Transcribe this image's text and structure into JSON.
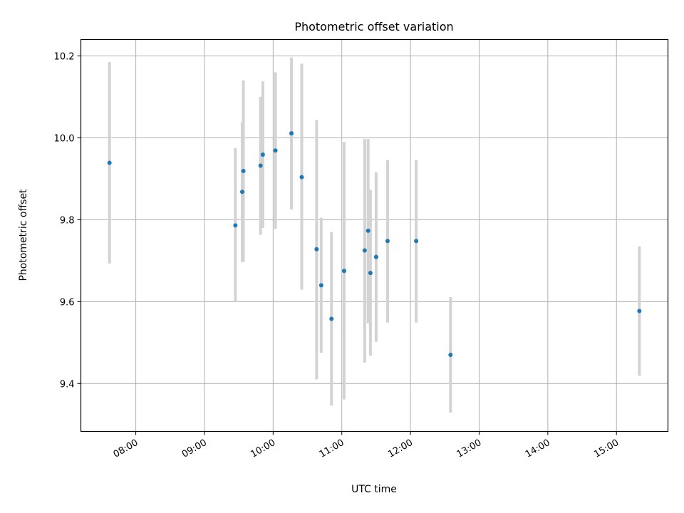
{
  "chart_data": {
    "type": "scatter",
    "title": "Photometric offset variation",
    "xlabel": "UTC time",
    "ylabel": "Photometric offset",
    "xlim": [
      "07:12",
      "15:45"
    ],
    "ylim": [
      9.283,
      10.24
    ],
    "grid": true,
    "x_ticks": [
      "08:00",
      "09:00",
      "10:00",
      "11:00",
      "12:00",
      "13:00",
      "14:00",
      "15:00"
    ],
    "y_ticks": [
      "9.4",
      "9.6",
      "9.8",
      "10.0",
      "10.2"
    ],
    "colors": {
      "point": "#1f77b4",
      "errorbar": "#d3d3d3",
      "grid": "#b0b0b0"
    },
    "points": [
      {
        "x": "07:37",
        "y": 9.939,
        "ymin": 9.693,
        "ymax": 10.185
      },
      {
        "x": "09:27",
        "y": 9.786,
        "ymin": 9.6,
        "ymax": 9.975
      },
      {
        "x": "09:33",
        "y": 9.868,
        "ymin": 9.697,
        "ymax": 10.038
      },
      {
        "x": "09:34",
        "y": 9.919,
        "ymin": 9.697,
        "ymax": 10.14
      },
      {
        "x": "09:49",
        "y": 9.932,
        "ymin": 9.763,
        "ymax": 10.1
      },
      {
        "x": "09:51",
        "y": 9.959,
        "ymin": 9.78,
        "ymax": 10.138
      },
      {
        "x": "10:02",
        "y": 9.969,
        "ymin": 9.778,
        "ymax": 10.16
      },
      {
        "x": "10:16",
        "y": 10.011,
        "ymin": 9.825,
        "ymax": 10.196
      },
      {
        "x": "10:25",
        "y": 9.904,
        "ymin": 9.629,
        "ymax": 10.181
      },
      {
        "x": "10:38",
        "y": 9.728,
        "ymin": 9.41,
        "ymax": 10.044
      },
      {
        "x": "10:42",
        "y": 9.64,
        "ymin": 9.475,
        "ymax": 9.805
      },
      {
        "x": "10:51",
        "y": 9.558,
        "ymin": 9.346,
        "ymax": 9.77
      },
      {
        "x": "11:02",
        "y": 9.675,
        "ymin": 9.361,
        "ymax": 9.99
      },
      {
        "x": "11:20",
        "y": 9.725,
        "ymin": 9.451,
        "ymax": 9.997
      },
      {
        "x": "11:23",
        "y": 9.773,
        "ymin": 9.547,
        "ymax": 9.997
      },
      {
        "x": "11:25",
        "y": 9.67,
        "ymin": 9.468,
        "ymax": 9.873
      },
      {
        "x": "11:30",
        "y": 9.709,
        "ymin": 9.502,
        "ymax": 9.916
      },
      {
        "x": "11:40",
        "y": 9.748,
        "ymin": 9.549,
        "ymax": 9.946
      },
      {
        "x": "12:05",
        "y": 9.748,
        "ymin": 9.549,
        "ymax": 9.946
      },
      {
        "x": "12:35",
        "y": 9.47,
        "ymin": 9.329,
        "ymax": 9.611
      },
      {
        "x": "15:20",
        "y": 9.577,
        "ymin": 9.419,
        "ymax": 9.735
      }
    ]
  }
}
